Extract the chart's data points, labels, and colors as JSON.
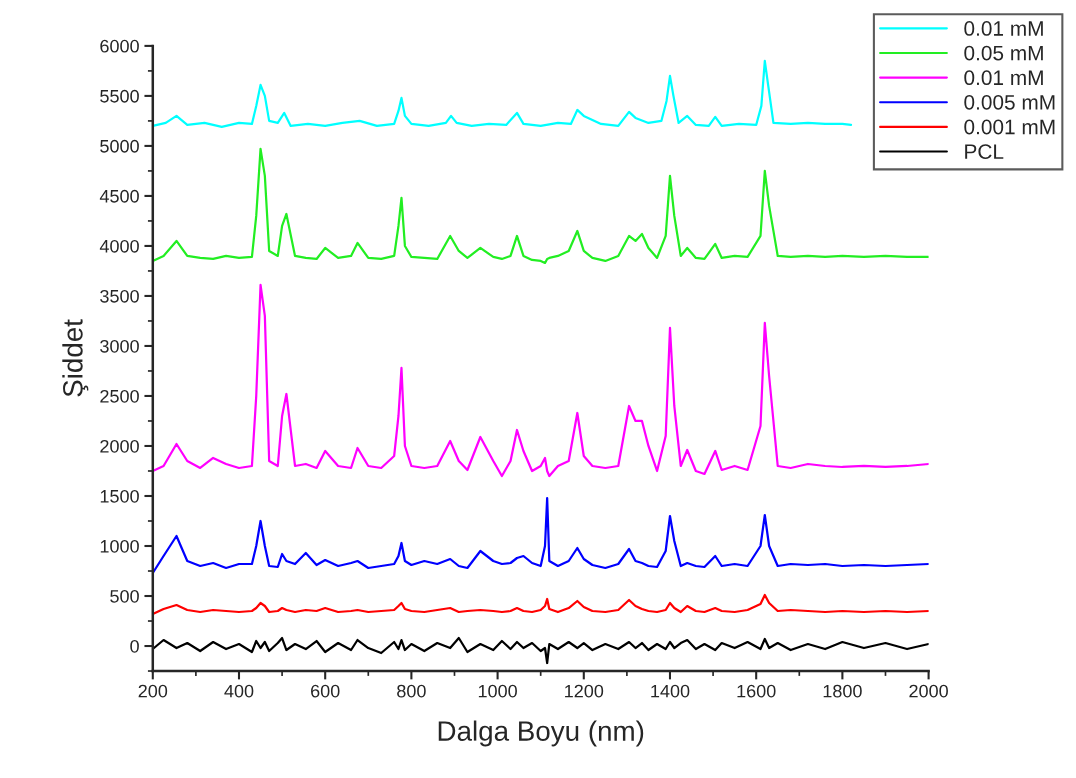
{
  "chart_data": {
    "type": "line",
    "xlabel": "Dalga Boyu (nm)",
    "ylabel": "Şiddet",
    "xlim": [
      200,
      2000
    ],
    "ylim": [
      -250,
      6000
    ],
    "xticks": [
      200,
      400,
      600,
      800,
      1000,
      1200,
      1400,
      1600,
      1800,
      2000
    ],
    "yticks": [
      0,
      500,
      1000,
      1500,
      2000,
      2500,
      3000,
      3500,
      4000,
      4500,
      5000,
      5500,
      6000
    ],
    "grid": false,
    "legend": "top right",
    "marker": "none",
    "line_style": "solid",
    "x": [
      200,
      225,
      255,
      280,
      310,
      340,
      370,
      400,
      430,
      440,
      450,
      460,
      470,
      490,
      500,
      510,
      530,
      555,
      580,
      600,
      630,
      660,
      675,
      700,
      730,
      760,
      770,
      777,
      785,
      800,
      830,
      860,
      890,
      910,
      930,
      960,
      990,
      1010,
      1030,
      1045,
      1060,
      1080,
      1100,
      1110,
      1115,
      1120,
      1140,
      1165,
      1185,
      1200,
      1220,
      1250,
      1280,
      1305,
      1320,
      1335,
      1350,
      1370,
      1390,
      1400,
      1410,
      1425,
      1440,
      1460,
      1480,
      1505,
      1520,
      1550,
      1580,
      1610,
      1620,
      1630,
      1650,
      1680,
      1720,
      1760,
      1800,
      1850,
      1900,
      1950,
      2000
    ],
    "series": [
      {
        "name": "0.01 mM",
        "color": "#00ffff",
        "x": [
          200,
          230,
          255,
          280,
          320,
          360,
          400,
          430,
          440,
          450,
          460,
          470,
          490,
          505,
          520,
          560,
          600,
          640,
          680,
          720,
          760,
          770,
          777,
          785,
          800,
          840,
          880,
          892,
          905,
          940,
          980,
          1020,
          1045,
          1060,
          1100,
          1140,
          1170,
          1185,
          1200,
          1240,
          1280,
          1305,
          1320,
          1350,
          1380,
          1392,
          1400,
          1408,
          1420,
          1440,
          1460,
          1490,
          1505,
          1520,
          1560,
          1600,
          1612,
          1620,
          1628,
          1640,
          1680,
          1720,
          1760,
          1800,
          1820
        ],
        "values": [
          5200,
          5230,
          5300,
          5210,
          5230,
          5190,
          5230,
          5220,
          5400,
          5610,
          5500,
          5250,
          5230,
          5330,
          5200,
          5220,
          5200,
          5230,
          5250,
          5200,
          5220,
          5350,
          5480,
          5300,
          5220,
          5200,
          5230,
          5300,
          5230,
          5200,
          5220,
          5210,
          5330,
          5220,
          5200,
          5230,
          5220,
          5360,
          5300,
          5220,
          5200,
          5340,
          5280,
          5230,
          5250,
          5450,
          5700,
          5500,
          5230,
          5300,
          5210,
          5200,
          5290,
          5200,
          5220,
          5210,
          5400,
          5850,
          5600,
          5230,
          5220,
          5230,
          5220,
          5220,
          5210
        ]
      },
      {
        "name": "0.05 mM",
        "color": "#22ee22",
        "values": [
          3850,
          3900,
          4050,
          3900,
          3880,
          3870,
          3900,
          3880,
          3890,
          4300,
          4970,
          4700,
          3950,
          3900,
          4200,
          4320,
          3900,
          3880,
          3870,
          3980,
          3880,
          3900,
          4030,
          3880,
          3870,
          3900,
          4200,
          4480,
          4000,
          3890,
          3880,
          3870,
          4100,
          3950,
          3880,
          3980,
          3890,
          3870,
          3900,
          4100,
          3900,
          3860,
          3850,
          3830,
          3870,
          3880,
          3900,
          3950,
          4150,
          3950,
          3880,
          3850,
          3900,
          4100,
          4050,
          4120,
          3980,
          3880,
          4100,
          4700,
          4300,
          3900,
          3980,
          3880,
          3870,
          4020,
          3880,
          3900,
          3890,
          4100,
          4750,
          4400,
          3900,
          3890,
          3900,
          3890,
          3900,
          3890,
          3900,
          3890,
          3890
        ]
      },
      {
        "name": "0.01 mM",
        "color": "#ff00ff",
        "values": [
          1750,
          1800,
          2020,
          1850,
          1780,
          1880,
          1820,
          1780,
          1800,
          2500,
          3610,
          3300,
          1850,
          1800,
          2300,
          2520,
          1800,
          1820,
          1780,
          1950,
          1800,
          1780,
          1980,
          1800,
          1780,
          1900,
          2300,
          2780,
          2000,
          1800,
          1780,
          1800,
          2050,
          1850,
          1760,
          2090,
          1850,
          1700,
          1850,
          2160,
          1950,
          1750,
          1800,
          1880,
          1750,
          1700,
          1800,
          1850,
          2330,
          1900,
          1800,
          1780,
          1800,
          2400,
          2250,
          2250,
          2000,
          1750,
          2100,
          3180,
          2400,
          1800,
          1960,
          1750,
          1720,
          1950,
          1760,
          1800,
          1760,
          2200,
          3230,
          2700,
          1800,
          1780,
          1820,
          1800,
          1790,
          1800,
          1790,
          1800,
          1820
        ]
      },
      {
        "name": "0.005 mM",
        "color": "#0000ff",
        "values": [
          730,
          900,
          1100,
          850,
          800,
          830,
          780,
          820,
          820,
          1000,
          1250,
          1000,
          800,
          790,
          920,
          850,
          820,
          930,
          810,
          860,
          800,
          830,
          850,
          780,
          800,
          820,
          900,
          1030,
          850,
          810,
          850,
          820,
          870,
          800,
          780,
          950,
          850,
          820,
          830,
          880,
          900,
          830,
          800,
          1000,
          1480,
          850,
          800,
          850,
          980,
          870,
          810,
          780,
          820,
          970,
          850,
          830,
          800,
          790,
          950,
          1300,
          1050,
          800,
          830,
          800,
          790,
          900,
          800,
          820,
          800,
          1000,
          1310,
          1000,
          800,
          820,
          810,
          820,
          800,
          810,
          800,
          810,
          820
        ]
      },
      {
        "name": "0.001 mM",
        "color": "#ff0000",
        "values": [
          320,
          370,
          410,
          360,
          340,
          360,
          350,
          340,
          350,
          380,
          430,
          400,
          340,
          350,
          380,
          360,
          340,
          360,
          350,
          380,
          340,
          350,
          360,
          340,
          350,
          360,
          400,
          430,
          370,
          350,
          340,
          360,
          380,
          340,
          350,
          360,
          350,
          340,
          350,
          380,
          350,
          340,
          360,
          400,
          470,
          370,
          340,
          380,
          450,
          390,
          350,
          340,
          360,
          460,
          400,
          370,
          350,
          340,
          360,
          430,
          380,
          340,
          400,
          350,
          340,
          380,
          350,
          340,
          360,
          420,
          510,
          430,
          350,
          360,
          350,
          340,
          350,
          340,
          350,
          340,
          350
        ]
      },
      {
        "name": "PCL",
        "color": "#000000",
        "values": [
          -30,
          60,
          -20,
          30,
          -50,
          40,
          -30,
          20,
          -60,
          50,
          -20,
          40,
          -50,
          30,
          80,
          -40,
          20,
          -30,
          50,
          -60,
          30,
          -40,
          60,
          -20,
          -70,
          40,
          -30,
          60,
          -40,
          20,
          -50,
          30,
          -20,
          80,
          -60,
          20,
          -40,
          50,
          -30,
          40,
          -20,
          30,
          -50,
          -20,
          -170,
          20,
          -30,
          40,
          -20,
          30,
          -40,
          20,
          -30,
          40,
          -20,
          30,
          -40,
          20,
          -30,
          40,
          -20,
          30,
          60,
          -30,
          20,
          -40,
          30,
          -20,
          40,
          -30,
          70,
          -20,
          30,
          -40,
          20,
          -30,
          40,
          -20,
          30,
          -30,
          20
        ]
      }
    ]
  }
}
